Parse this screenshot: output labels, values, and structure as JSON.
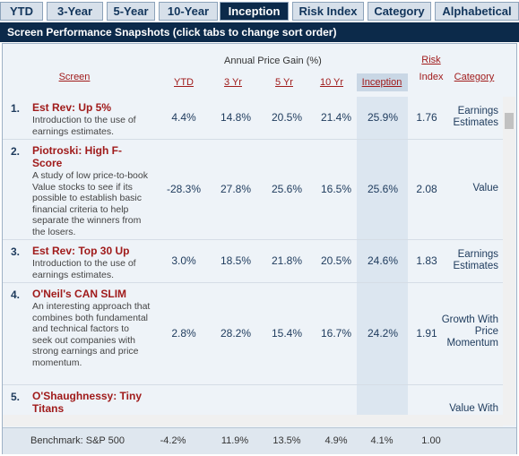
{
  "tabs": [
    "YTD",
    "3-Year",
    "5-Year",
    "10-Year",
    "Inception",
    "Risk Index",
    "Category",
    "Alphabetical"
  ],
  "title": "Screen Performance Snapshots (click tabs to change sort order)",
  "table": {
    "group_header": "Annual Price Gain (%)",
    "headers": {
      "screen": "Screen",
      "ytd": "YTD",
      "y3": "3 Yr",
      "y5": "5 Yr",
      "y10": "10 Yr",
      "inception": "Inception",
      "risk_1": "Risk",
      "risk_2": "Index",
      "category": "Category"
    },
    "rows": [
      {
        "rank": "1.",
        "name": "Est Rev: Up 5%",
        "description": "Introduction to the use of earnings estimates.",
        "ytd": "4.4%",
        "y3": "14.8%",
        "y5": "20.5%",
        "y10": "21.4%",
        "inception": "25.9%",
        "risk": "1.76",
        "category": "Earnings Estimates"
      },
      {
        "rank": "2.",
        "name": "Piotroski: High F-Score",
        "description": "A study of low price-to-book Value stocks to see if its possible to establish basic financial criteria to help separate the winners from the losers.",
        "ytd": "-28.3%",
        "y3": "27.8%",
        "y5": "25.6%",
        "y10": "16.5%",
        "inception": "25.6%",
        "risk": "2.08",
        "category": "Value"
      },
      {
        "rank": "3.",
        "name": "Est Rev: Top 30 Up",
        "description": "Introduction to the use of earnings estimates.",
        "ytd": "3.0%",
        "y3": "18.5%",
        "y5": "21.8%",
        "y10": "20.5%",
        "inception": "24.6%",
        "risk": "1.83",
        "category": "Earnings Estimates"
      },
      {
        "rank": "4.",
        "name": "O'Neil's CAN SLIM",
        "description": "An interesting approach that combines both fundamental and technical factors to seek out companies with strong earnings and price momentum.",
        "ytd": "2.8%",
        "y3": "28.2%",
        "y5": "15.4%",
        "y10": "16.7%",
        "inception": "24.2%",
        "risk": "1.91",
        "category": "Growth With Price Momentum"
      },
      {
        "rank": "5.",
        "name": "O'Shaughnessy: Tiny Titans",
        "description": "",
        "ytd": "",
        "y3": "",
        "y5": "",
        "y10": "",
        "inception": "",
        "risk": "",
        "category": "Value With"
      }
    ],
    "benchmark": {
      "name": "Benchmark: S&P 500",
      "ytd": "-4.2%",
      "y3": "11.9%",
      "y5": "13.5%",
      "y10": "4.9%",
      "inception": "4.1%",
      "risk": "1.00"
    }
  }
}
